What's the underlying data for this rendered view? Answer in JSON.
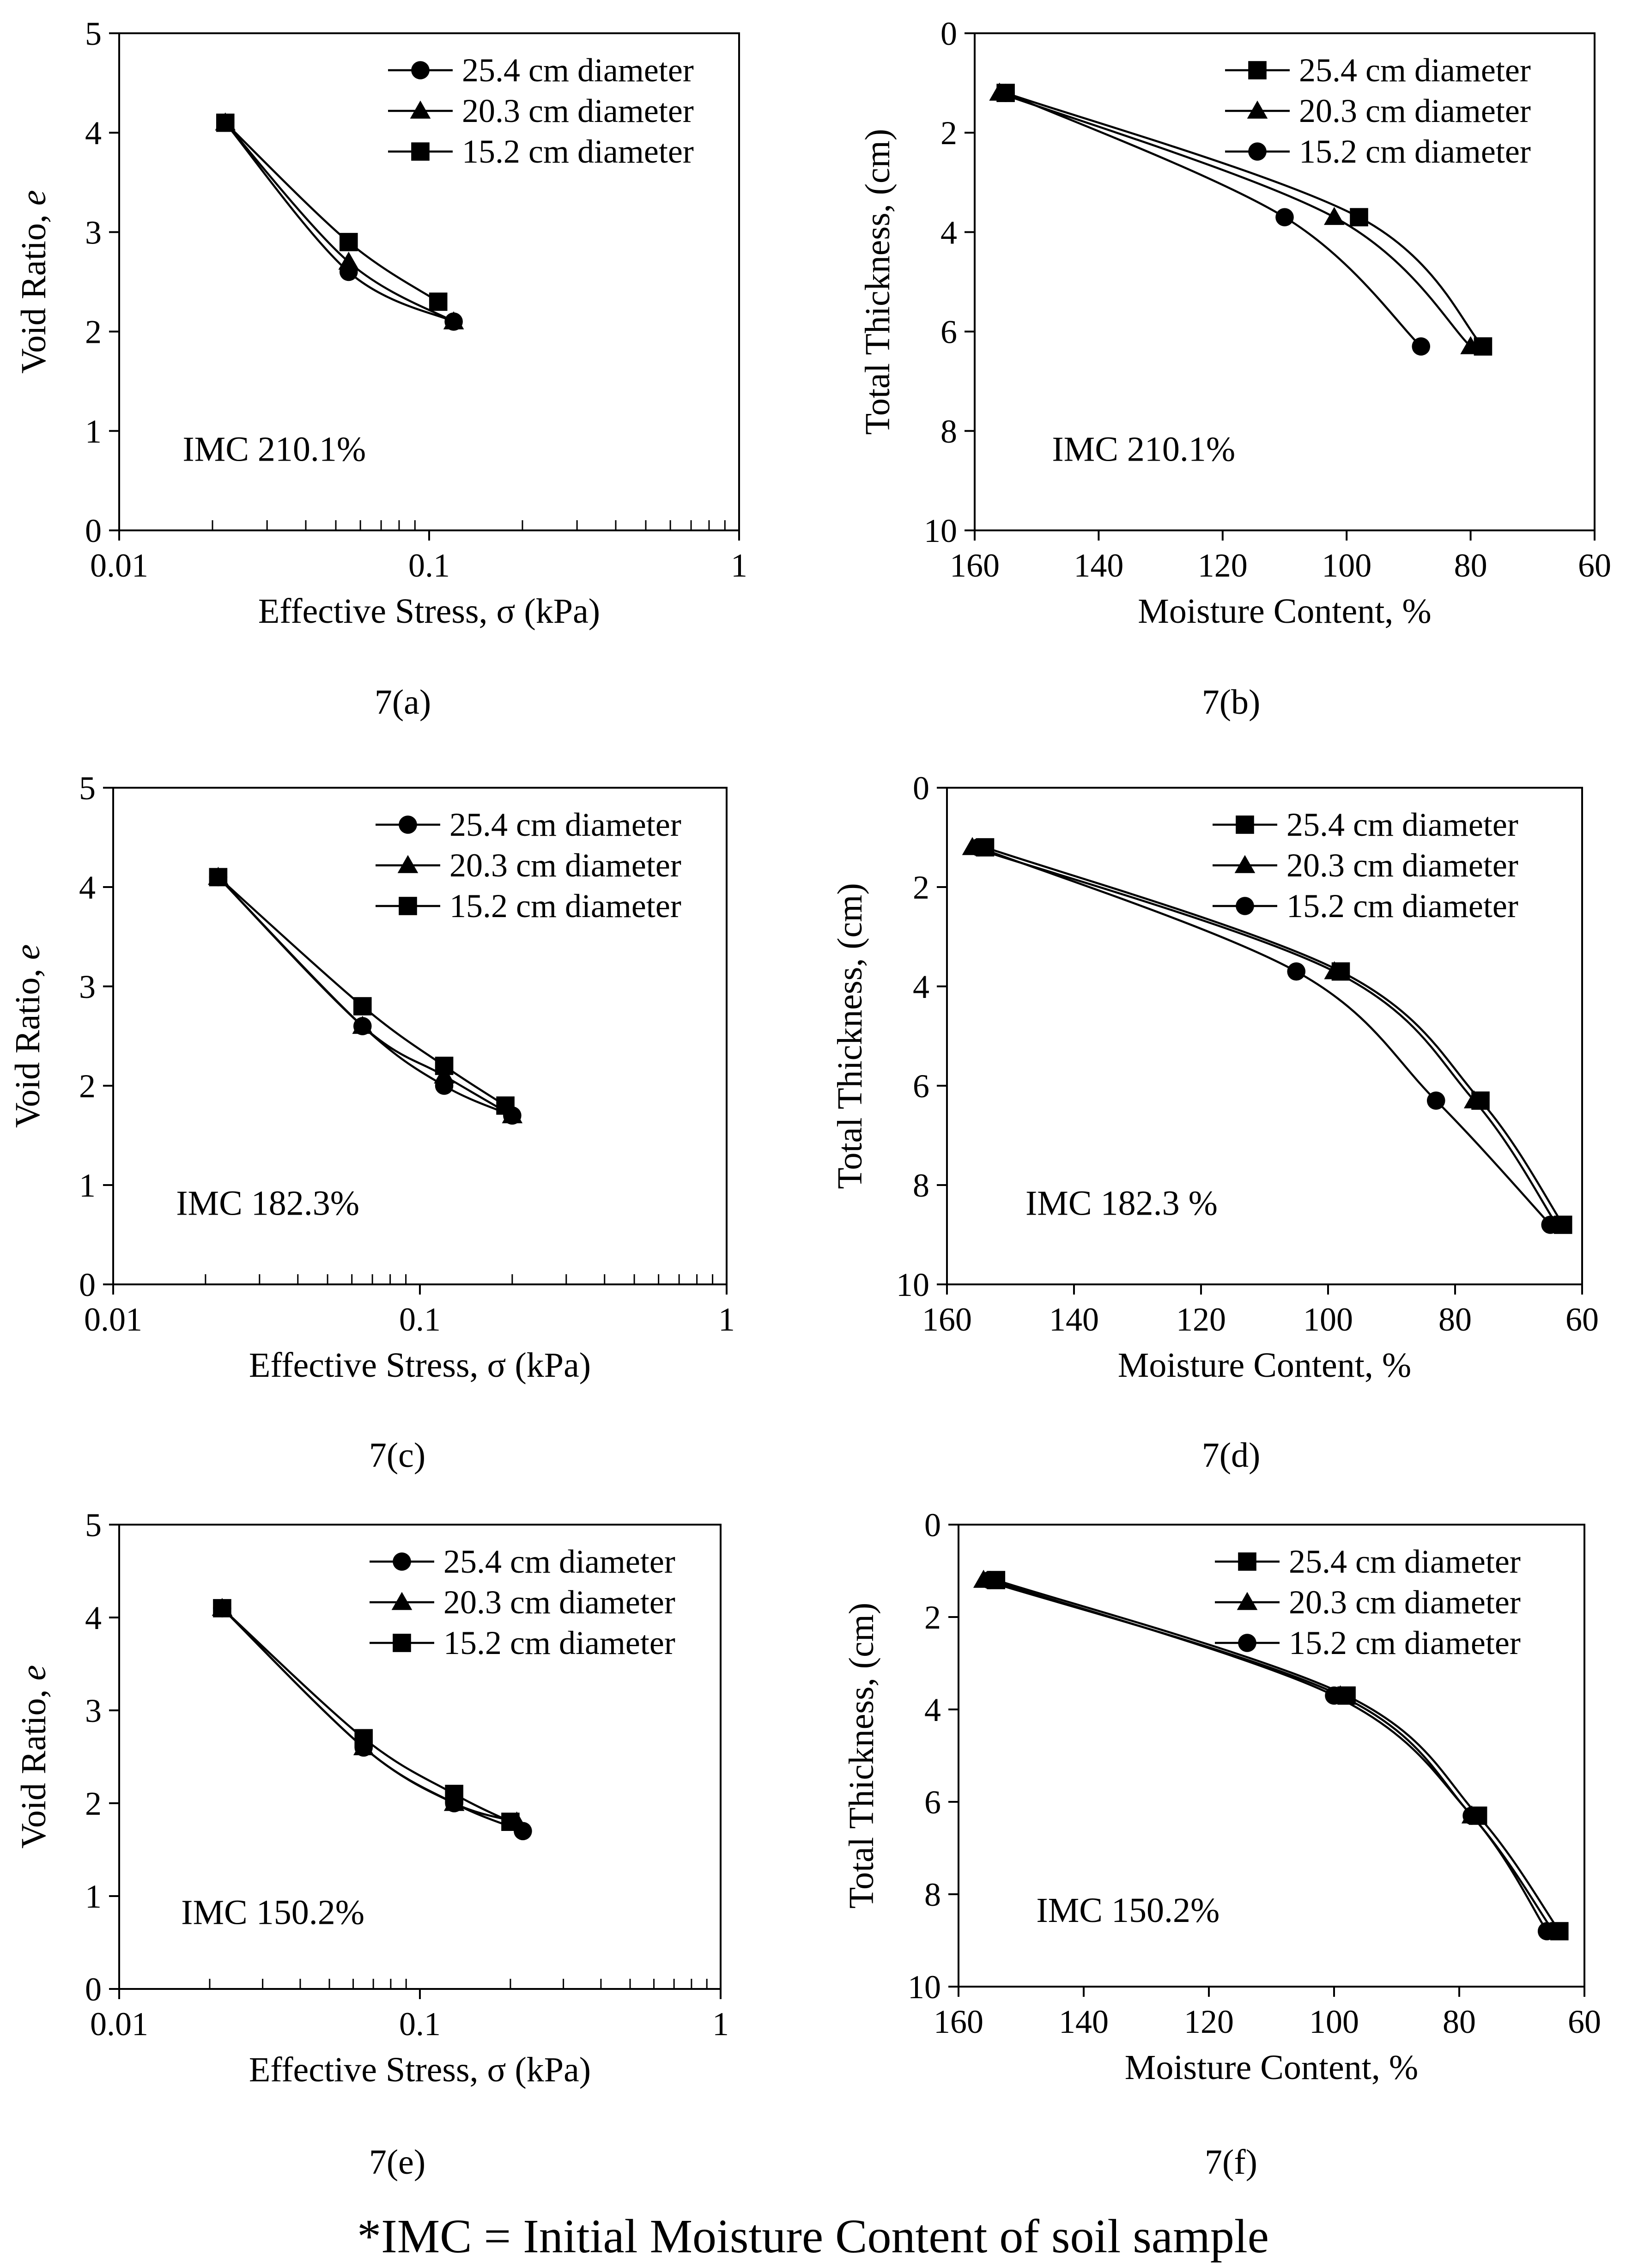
{
  "footnote": "*IMC = Initial Moisture Content of soil sample",
  "chart_data": [
    {
      "type": "scatter",
      "caption": "7(a)",
      "annotation": "IMC 210.1%",
      "xlabel": "Effective Stress, σ (kPa)",
      "ylabel_main": "Void Ratio, ",
      "ylabel_italic": "e",
      "xscale": "log",
      "xlim": [
        0.01,
        1
      ],
      "ylim": [
        0,
        5
      ],
      "xticks": [
        0.01,
        0.1,
        1
      ],
      "xtick_labels": [
        "0.01",
        "0.1",
        "1"
      ],
      "yticks": [
        0,
        1,
        2,
        3,
        4,
        5
      ],
      "ytick_labels": [
        "0",
        "1",
        "2",
        "3",
        "4",
        "5"
      ],
      "legend_position": "top-right",
      "series": [
        {
          "name": "25.4 cm diameter",
          "marker": "circle",
          "x": [
            0.022,
            0.055,
            0.12
          ],
          "y": [
            4.1,
            2.6,
            2.1
          ]
        },
        {
          "name": "20.3 cm diameter",
          "marker": "triangle",
          "x": [
            0.022,
            0.055,
            0.12
          ],
          "y": [
            4.1,
            2.7,
            2.1
          ]
        },
        {
          "name": "15.2 cm diameter",
          "marker": "square",
          "x": [
            0.022,
            0.055,
            0.107
          ],
          "y": [
            4.1,
            2.9,
            2.3
          ]
        }
      ]
    },
    {
      "type": "line",
      "caption": "7(b)",
      "annotation": "IMC 210.1%",
      "xlabel": "Moisture Content, %",
      "ylabel_main": "Total Thickness, (cm)",
      "ylabel_italic": "",
      "xscale": "linear",
      "xlim": [
        160,
        60
      ],
      "ylim": [
        10,
        0
      ],
      "xticks": [
        160,
        140,
        120,
        100,
        80,
        60
      ],
      "xtick_labels": [
        "160",
        "140",
        "120",
        "100",
        "80",
        "60"
      ],
      "yticks": [
        0,
        2,
        4,
        6,
        8,
        10
      ],
      "ytick_labels": [
        "0",
        "2",
        "4",
        "6",
        "8",
        "10"
      ],
      "legend_position": "top-right",
      "series": [
        {
          "name": "25.4 cm diameter",
          "marker": "square",
          "x": [
            155,
            98,
            78
          ],
          "y": [
            1.2,
            3.7,
            6.3
          ]
        },
        {
          "name": "20.3 cm diameter",
          "marker": "triangle",
          "x": [
            156,
            102,
            80
          ],
          "y": [
            1.2,
            3.7,
            6.3
          ]
        },
        {
          "name": "15.2 cm diameter",
          "marker": "circle",
          "x": [
            155,
            110,
            88
          ],
          "y": [
            1.2,
            3.7,
            6.3
          ]
        }
      ]
    },
    {
      "type": "scatter",
      "caption": "7(c)",
      "annotation": "IMC 182.3%",
      "xlabel": "Effective Stress, σ (kPa)",
      "ylabel_main": "Void Ratio, ",
      "ylabel_italic": "e",
      "xscale": "log",
      "xlim": [
        0.01,
        1
      ],
      "ylim": [
        0,
        5
      ],
      "xticks": [
        0.01,
        0.1,
        1
      ],
      "xtick_labels": [
        "0.01",
        "0.1",
        "1"
      ],
      "yticks": [
        0,
        1,
        2,
        3,
        4,
        5
      ],
      "ytick_labels": [
        "0",
        "1",
        "2",
        "3",
        "4",
        "5"
      ],
      "legend_position": "top-right",
      "series": [
        {
          "name": "25.4 cm diameter",
          "marker": "circle",
          "x": [
            0.022,
            0.065,
            0.12,
            0.2
          ],
          "y": [
            4.1,
            2.6,
            2.0,
            1.7
          ]
        },
        {
          "name": "20.3 cm diameter",
          "marker": "triangle",
          "x": [
            0.022,
            0.065,
            0.12,
            0.2
          ],
          "y": [
            4.1,
            2.6,
            2.1,
            1.7
          ]
        },
        {
          "name": "15.2 cm diameter",
          "marker": "square",
          "x": [
            0.022,
            0.065,
            0.12,
            0.19
          ],
          "y": [
            4.1,
            2.8,
            2.2,
            1.8
          ]
        }
      ]
    },
    {
      "type": "line",
      "caption": "7(d)",
      "annotation": "IMC 182.3 %",
      "xlabel": "Moisture Content, %",
      "ylabel_main": "Total Thickness, (cm)",
      "ylabel_italic": "",
      "xscale": "linear",
      "xlim": [
        160,
        60
      ],
      "ylim": [
        10,
        0
      ],
      "xticks": [
        160,
        140,
        120,
        100,
        80,
        60
      ],
      "xtick_labels": [
        "160",
        "140",
        "120",
        "100",
        "80",
        "60"
      ],
      "yticks": [
        0,
        2,
        4,
        6,
        8,
        10
      ],
      "ytick_labels": [
        "0",
        "2",
        "4",
        "6",
        "8",
        "10"
      ],
      "legend_position": "top-right",
      "series": [
        {
          "name": "25.4 cm diameter",
          "marker": "square",
          "x": [
            154,
            98,
            76,
            63
          ],
          "y": [
            1.2,
            3.7,
            6.3,
            8.8
          ]
        },
        {
          "name": "20.3 cm diameter",
          "marker": "triangle",
          "x": [
            156,
            99,
            77,
            64
          ],
          "y": [
            1.2,
            3.7,
            6.3,
            8.8
          ]
        },
        {
          "name": "15.2 cm diameter",
          "marker": "circle",
          "x": [
            155,
            105,
            83,
            65
          ],
          "y": [
            1.2,
            3.7,
            6.3,
            8.8
          ]
        }
      ]
    },
    {
      "type": "scatter",
      "caption": "7(e)",
      "annotation": "IMC 150.2%",
      "xlabel": "Effective Stress, σ (kPa)",
      "ylabel_main": "Void Ratio, ",
      "ylabel_italic": "e",
      "xscale": "log",
      "xlim": [
        0.01,
        1
      ],
      "ylim": [
        0,
        5
      ],
      "xticks": [
        0.01,
        0.1,
        1
      ],
      "xtick_labels": [
        "0.01",
        "0.1",
        "1"
      ],
      "yticks": [
        0,
        1,
        2,
        3,
        4,
        5
      ],
      "ytick_labels": [
        "0",
        "1",
        "2",
        "3",
        "4",
        "5"
      ],
      "legend_position": "top-right",
      "series": [
        {
          "name": "25.4 cm diameter",
          "marker": "circle",
          "x": [
            0.022,
            0.065,
            0.13,
            0.22
          ],
          "y": [
            4.1,
            2.6,
            2.0,
            1.7
          ]
        },
        {
          "name": "20.3 cm diameter",
          "marker": "triangle",
          "x": [
            0.022,
            0.065,
            0.13,
            0.21
          ],
          "y": [
            4.1,
            2.6,
            2.0,
            1.8
          ]
        },
        {
          "name": "15.2 cm diameter",
          "marker": "square",
          "x": [
            0.022,
            0.065,
            0.13,
            0.2
          ],
          "y": [
            4.1,
            2.7,
            2.1,
            1.8
          ]
        }
      ]
    },
    {
      "type": "line",
      "caption": "7(f)",
      "annotation": "IMC 150.2%",
      "xlabel": "Moisture Content, %",
      "ylabel_main": "Total Thickness, (cm)",
      "ylabel_italic": "",
      "xscale": "linear",
      "xlim": [
        160,
        60
      ],
      "ylim": [
        10,
        0
      ],
      "xticks": [
        160,
        140,
        120,
        100,
        80,
        60
      ],
      "xtick_labels": [
        "160",
        "140",
        "120",
        "100",
        "80",
        "60"
      ],
      "yticks": [
        0,
        2,
        4,
        6,
        8,
        10
      ],
      "ytick_labels": [
        "0",
        "2",
        "4",
        "6",
        "8",
        "10"
      ],
      "legend_position": "top-right",
      "series": [
        {
          "name": "25.4 cm diameter",
          "marker": "square",
          "x": [
            154,
            98,
            77,
            64
          ],
          "y": [
            1.2,
            3.7,
            6.3,
            8.8
          ]
        },
        {
          "name": "20.3 cm diameter",
          "marker": "triangle",
          "x": [
            156,
            99,
            78,
            65
          ],
          "y": [
            1.2,
            3.7,
            6.3,
            8.8
          ]
        },
        {
          "name": "15.2 cm diameter",
          "marker": "circle",
          "x": [
            155,
            100,
            78,
            66
          ],
          "y": [
            1.2,
            3.7,
            6.3,
            8.8
          ]
        }
      ]
    }
  ]
}
